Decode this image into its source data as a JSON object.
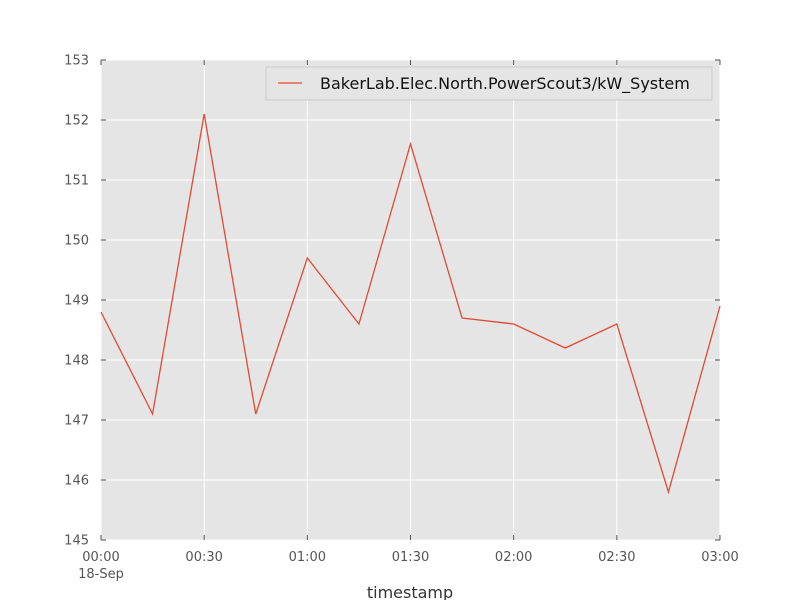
{
  "chart_data": {
    "type": "line",
    "x": [
      "00:00",
      "00:15",
      "00:30",
      "00:45",
      "01:00",
      "01:15",
      "01:30",
      "01:45",
      "02:00",
      "02:15",
      "02:30",
      "02:45",
      "03:00"
    ],
    "series": [
      {
        "name": "BakerLab.Elec.North.PowerScout3/kW_System",
        "values": [
          148.8,
          147.1,
          152.1,
          147.1,
          149.7,
          148.6,
          151.6,
          148.7,
          148.6,
          148.2,
          148.6,
          145.8,
          148.9
        ],
        "color": "#E24A33"
      }
    ],
    "xlabel": "timestamp",
    "ylabel": "",
    "ylim": [
      145,
      153
    ],
    "yticks": [
      "145",
      "146",
      "147",
      "148",
      "149",
      "150",
      "151",
      "152",
      "153"
    ],
    "xticks": [
      {
        "label": "00:00",
        "sublabel": "18-Sep"
      },
      {
        "label": "00:30",
        "sublabel": ""
      },
      {
        "label": "01:00",
        "sublabel": ""
      },
      {
        "label": "01:30",
        "sublabel": ""
      },
      {
        "label": "02:00",
        "sublabel": ""
      },
      {
        "label": "02:30",
        "sublabel": ""
      },
      {
        "label": "03:00",
        "sublabel": ""
      }
    ],
    "grid": true,
    "legend_position": "top-right",
    "plot_background": "#E5E5E5",
    "grid_color": "#FFFFFF"
  }
}
